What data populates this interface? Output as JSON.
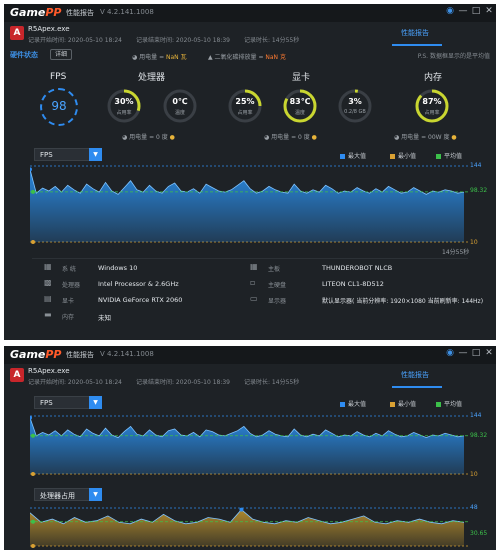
{
  "app": {
    "logo_main": "Game",
    "logo_accent": "PP",
    "tab_title": "性能报告",
    "version": "V 4.2.141.1008",
    "perf_tab": "性能报告",
    "icons": [
      "camera-icon",
      "minimize-icon",
      "maximize-icon",
      "close-icon"
    ]
  },
  "top": {
    "process_icon_letter": "A",
    "process": "R5Apex.exe",
    "record_start": "记录开始时间: 2020-05-10 18:24",
    "record_end": "记录结束时间: 2020-05-10 18:39",
    "record_duration": "记录时长: 14分55秒",
    "hw_status": "硬件状态",
    "details_btn": "详细",
    "ps_note": "P.S. 数据框显示的是平均值",
    "cpu_power_label": "用电量 =",
    "cpu_power_value": "NaN 瓦",
    "co2_label": "二氧化碳排放量 =",
    "co2_value": "NaN 克",
    "fps": {
      "title": "FPS",
      "value": "98"
    },
    "cpu": {
      "title": "处理器",
      "usage": {
        "value": "30%",
        "label": "占用率",
        "fill": 0.3
      },
      "temp": {
        "value": "0℃",
        "label": "温度",
        "fill": 0.0
      },
      "power": "用电量 = 0 度"
    },
    "gpu": {
      "title": "显卡",
      "usage": {
        "value": "25%",
        "label": "占用率",
        "fill": 0.25
      },
      "temp": {
        "value": "83℃",
        "label": "温度",
        "fill": 0.83
      },
      "vram": {
        "value": "3%",
        "label": "0.2/8 GB",
        "fill": 0.03
      },
      "power": "用电量 = 0 度"
    },
    "mem": {
      "title": "内存",
      "usage": {
        "value": "87%",
        "label": "占用率",
        "fill": 0.87
      },
      "power": "用电量 = 00W 度"
    },
    "fps_chart": {
      "selector": "FPS",
      "legend": [
        "最大值",
        "最小值",
        "平均值"
      ],
      "max_label": "144",
      "avg_label": "98.32",
      "min_label": "10",
      "duration_label": "14分55秒",
      "values": [
        138,
        96,
        105,
        100,
        108,
        98,
        110,
        102,
        96,
        112,
        104,
        98,
        115,
        100,
        94,
        106,
        118,
        102,
        98,
        110,
        100,
        96,
        108,
        114,
        100,
        98,
        104,
        96,
        112,
        106,
        100,
        98,
        102,
        110,
        118,
        104,
        96,
        100,
        108,
        102,
        98,
        96,
        112,
        100,
        96,
        102,
        98,
        110,
        104,
        96,
        100,
        98,
        106,
        100,
        96,
        104,
        98,
        108,
        102,
        96,
        98,
        106,
        100,
        94,
        100,
        98,
        102,
        100,
        96,
        98
      ]
    },
    "sys": {
      "os_key": "系 统",
      "os_val": "Windows 10",
      "cpu_key": "处理器",
      "cpu_val": "Intel Processor & 2.6GHz",
      "gpu_key": "显卡",
      "gpu_val": "NVIDIA GeForce RTX 2060",
      "mem_key": "内存",
      "mem_val": "未知",
      "board_key": "主板",
      "board_val": "THUNDEROBOT NLCB",
      "disk_key": "主硬盘",
      "disk_val": "LITEON CL1-8D512",
      "display_key": "显示器",
      "display_val": "默认显示器( 当前分辨率: 1920×1080 当前刷新率: 144Hz)"
    }
  },
  "bottom": {
    "process_icon_letter": "A",
    "process": "R5Apex.exe",
    "record_start": "记录开始时间: 2020-05-10 18:24",
    "record_end": "记录结束时间: 2020-05-10 18:39",
    "record_duration": "记录时长: 14分55秒",
    "fps_chart": {
      "selector": "FPS",
      "legend": [
        "最大值",
        "最小值",
        "平均值"
      ],
      "max_label": "144",
      "avg_label": "98.32",
      "min_label": "10",
      "values": [
        140,
        98,
        106,
        100,
        110,
        98,
        112,
        102,
        96,
        114,
        104,
        98,
        116,
        100,
        94,
        108,
        120,
        102,
        98,
        112,
        100,
        96,
        110,
        114,
        100,
        98,
        106,
        96,
        112,
        108,
        100,
        98,
        104,
        110,
        120,
        104,
        96,
        100,
        110,
        102,
        98,
        96,
        114,
        100,
        96,
        102,
        98,
        112,
        104,
        96,
        100,
        98,
        108,
        100,
        96,
        104,
        98,
        110,
        102,
        96,
        98,
        106,
        100,
        94,
        100,
        98,
        104,
        100,
        96,
        98
      ]
    },
    "cpu_chart": {
      "selector": "处理器占用",
      "max_label": "48",
      "avg_label": "30.65",
      "values": [
        42,
        30,
        34,
        28,
        36,
        30,
        32,
        38,
        30,
        28,
        34,
        30,
        40,
        32,
        28,
        30,
        36,
        34,
        30,
        46,
        34,
        30,
        28,
        32,
        30,
        36,
        32,
        28,
        30,
        34,
        38,
        30,
        28,
        32,
        30,
        34,
        30,
        28,
        32,
        30
      ]
    },
    "colors": {
      "max": "#2f8cf0",
      "min": "#d9a133",
      "avg": "#3cc04a",
      "area_top": "#2a8de8",
      "cpu_area": "#b58e2e"
    }
  }
}
